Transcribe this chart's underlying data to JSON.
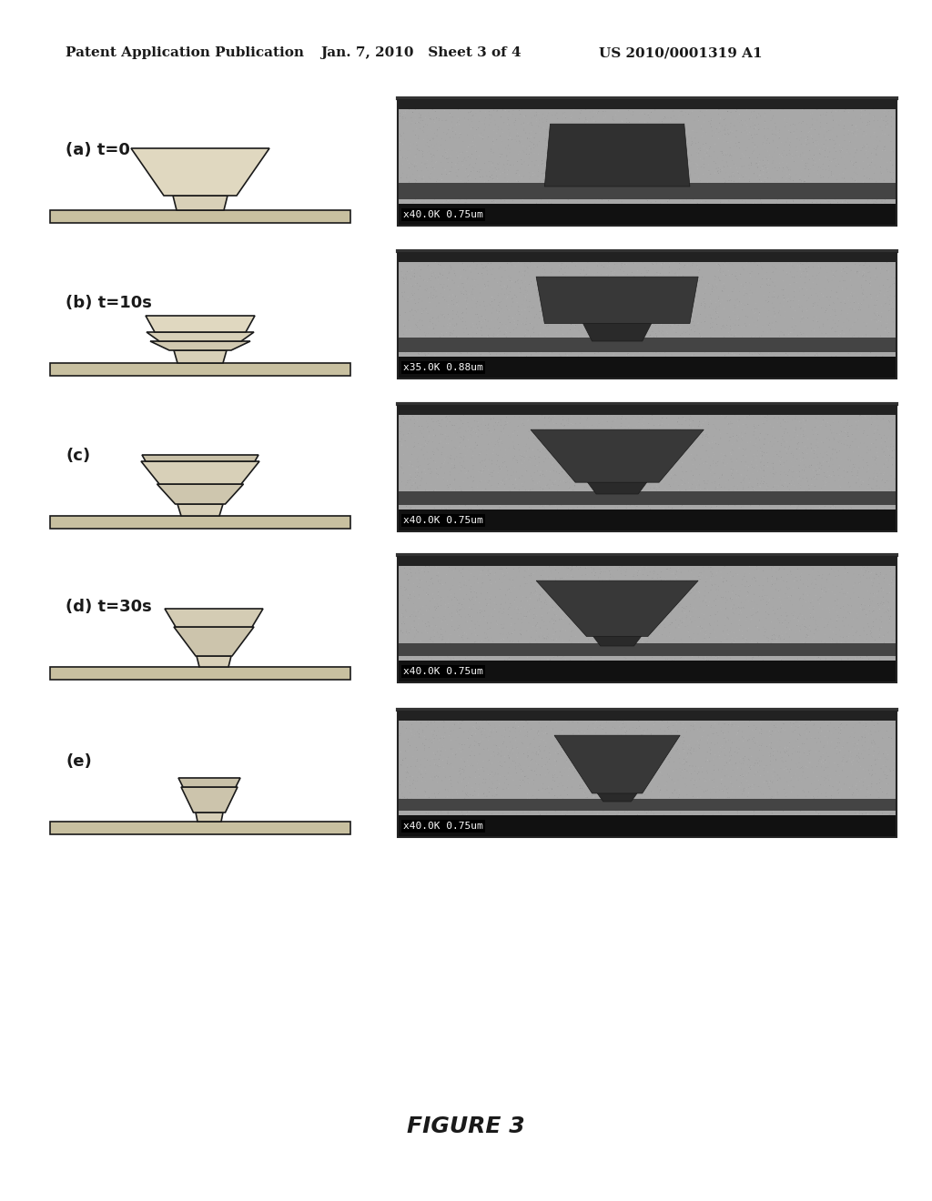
{
  "bg_color": "#ffffff",
  "header_left": "Patent Application Publication",
  "header_mid": "Jan. 7, 2010   Sheet 3 of 4",
  "header_right": "US 2010/0001319 A1",
  "figure_label": "FIGURE 3",
  "panels": [
    {
      "label": "(a) t=0"
    },
    {
      "label": "(b) t=10s"
    },
    {
      "label": "(c)"
    },
    {
      "label": "(d) t=30s"
    },
    {
      "label": "(e)"
    }
  ],
  "microscope_labels": [
    "x40.0K 0.75um",
    "x35.0K 0.88um",
    "x40.0K 0.75um",
    "x40.0K 0.75um",
    "x40.0K 0.75um"
  ],
  "line_color": "#1a1a1a",
  "diagram_color": "#d8d0b8",
  "substrate_color": "#c8c0a0"
}
